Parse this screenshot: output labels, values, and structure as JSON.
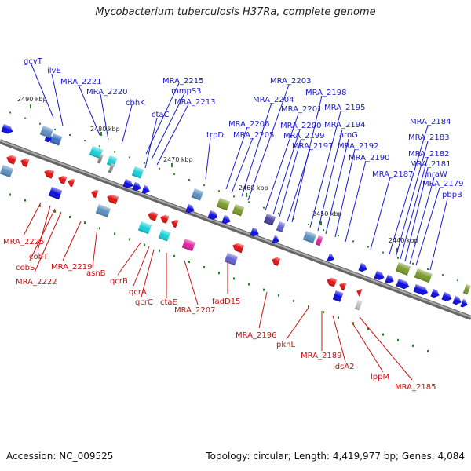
{
  "title": "Mycobacterium tuberculosis H37Ra, complete genome",
  "accession": "Accession: NC_009525",
  "summary": "Topology: circular; Length: 4,419,977 bp; Genes: 4,084",
  "colors": {
    "forward_label": "#1a1acc",
    "reverse_label": "#cc1111",
    "backbone": "#888888",
    "tick": "#1f8a1f"
  },
  "ruler_labels": [
    "2490 kbp",
    "2480 kbp",
    "2470 kbp",
    "2460 kbp",
    "2450 kbp",
    "2440 kbp"
  ],
  "forward_labels": [
    "gcvT",
    "ilvE",
    "MRA_2221",
    "MRA_2220",
    "cbhK",
    "MRA_2215",
    "mmpS3",
    "MRA_2213",
    "ctaC",
    "trpD",
    "MRA_2206",
    "MRA_2205",
    "MRA_2204",
    "MRA_2203",
    "MRA_2201",
    "MRA_2200",
    "MRA_2199",
    "MRA_2198",
    "MRA_2197",
    "MRA_2195",
    "MRA_2194",
    "aroG",
    "MRA_2192",
    "MRA_2190",
    "MRA_2187",
    "MRA_2184",
    "MRA_2183",
    "MRA_2182",
    "MRA_2181",
    "mraW",
    "MRA_2179",
    "pbpB"
  ],
  "reverse_labels": [
    "MRA_2225",
    "cobT",
    "cobS",
    "MRA_2222",
    "MRA_2219",
    "asnB",
    "qcrB",
    "qcrA",
    "qcrC",
    "ctaE",
    "MRA_2207",
    "fadD15",
    "MRA_2196",
    "pknL",
    "MRA_2189",
    "idsA2",
    "lppM",
    "MRA_2185"
  ]
}
